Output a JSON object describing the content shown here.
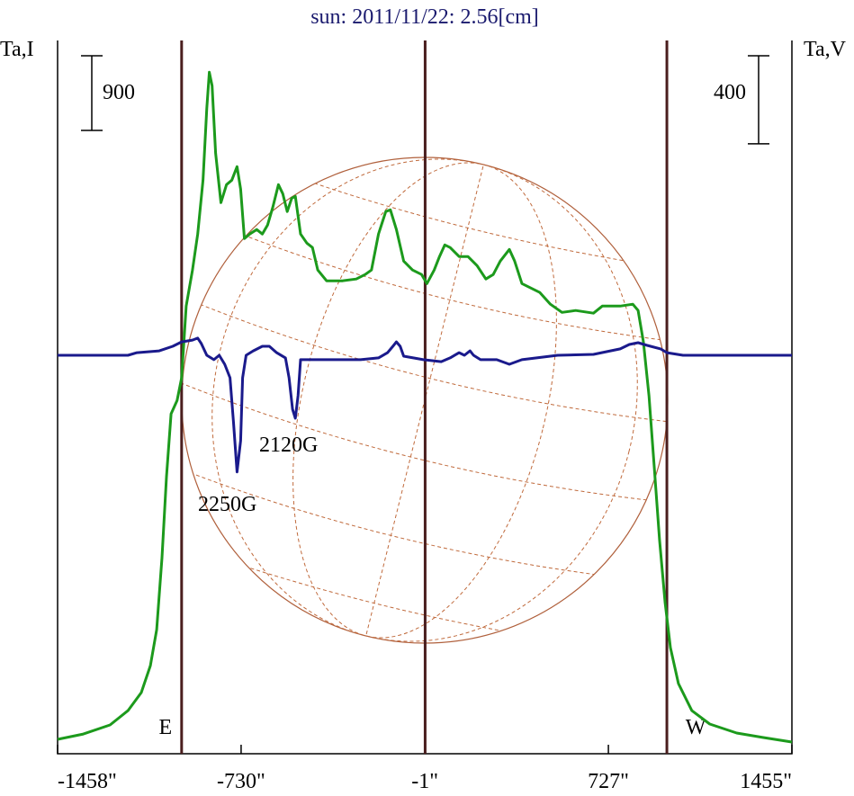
{
  "chart_data": {
    "type": "line",
    "title": "sun: 2011/11/22: 2.56[cm]",
    "ylabel": "Ta,I",
    "y2label": "Ta,V",
    "xlim": [
      -1458,
      1455
    ],
    "xticks": [
      {
        "value": -1458,
        "label": "-1458\""
      },
      {
        "value": -730,
        "label": "-730\""
      },
      {
        "value": -1,
        "label": "-1\""
      },
      {
        "value": 727,
        "label": "727\""
      },
      {
        "value": 1455,
        "label": "1455\""
      }
    ],
    "ylim": [
      0,
      8600
    ],
    "y2lim": [
      -1810,
      1430
    ],
    "scale_bars": {
      "y": 900,
      "y2": 400
    },
    "vlines": [
      {
        "x": -966,
        "label": "E"
      },
      {
        "x": 0
      },
      {
        "x": 959,
        "label": "W"
      }
    ],
    "annotations": [
      "2250G",
      "2120G"
    ],
    "series": [
      {
        "name": "I",
        "color": "#1c9a1c",
        "x": [
          -1458,
          -1356,
          -1250,
          -1179,
          -1126,
          -1090,
          -1065,
          -1044,
          -1026,
          -1008,
          -984,
          -966,
          -948,
          -923,
          -902,
          -881,
          -866,
          -856,
          -845,
          -831,
          -810,
          -788,
          -767,
          -746,
          -732,
          -717,
          -696,
          -668,
          -646,
          -625,
          -604,
          -582,
          -565,
          -547,
          -529,
          -515,
          -494,
          -469,
          -447,
          -426,
          -391,
          -327,
          -273,
          -238,
          -213,
          -185,
          -156,
          -138,
          -114,
          -85,
          -50,
          -14,
          7,
          36,
          57,
          78,
          99,
          135,
          170,
          206,
          241,
          270,
          298,
          334,
          355,
          384,
          455,
          497,
          543,
          597,
          668,
          703,
          774,
          824,
          845,
          866,
          888,
          909,
          930,
          952,
          973,
          1005,
          1058,
          1129,
          1236,
          1342,
          1455
        ],
        "values": [
          173,
          238,
          347,
          520,
          737,
          1062,
          1496,
          2363,
          3339,
          4098,
          4260,
          4531,
          5398,
          5832,
          6266,
          6916,
          7783,
          8217,
          8054,
          7241,
          6645,
          6862,
          6916,
          7079,
          6808,
          6211,
          6266,
          6320,
          6266,
          6374,
          6591,
          6862,
          6753,
          6537,
          6699,
          6721,
          6266,
          6157,
          6103,
          5832,
          5702,
          5702,
          5724,
          5778,
          5832,
          6266,
          6537,
          6558,
          6320,
          5940,
          5832,
          5778,
          5669,
          5832,
          5995,
          6135,
          6103,
          5995,
          5995,
          5886,
          5724,
          5778,
          5940,
          6081,
          5940,
          5669,
          5561,
          5420,
          5322,
          5344,
          5312,
          5398,
          5398,
          5420,
          5344,
          4965,
          4314,
          3447,
          2580,
          1821,
          1279,
          846,
          520,
          358,
          249,
          195,
          141
        ]
      },
      {
        "name": "V",
        "color": "#1a1a8c",
        "axis": "y2",
        "x": [
          -1458,
          -1179,
          -1143,
          -1055,
          -1001,
          -966,
          -923,
          -902,
          -888,
          -866,
          -838,
          -817,
          -795,
          -774,
          -760,
          -746,
          -732,
          -724,
          -710,
          -682,
          -646,
          -618,
          -589,
          -554,
          -540,
          -526,
          -515,
          -504,
          -494,
          -476,
          -398,
          -256,
          -185,
          -149,
          -128,
          -114,
          -99,
          -85,
          -7,
          64,
          99,
          135,
          156,
          178,
          192,
          220,
          284,
          334,
          384,
          526,
          668,
          774,
          810,
          845,
          881,
          934,
          959,
          1023,
          1455
        ],
        "values": [
          0,
          0,
          12,
          20,
          41,
          61,
          69,
          78,
          53,
          0,
          -20,
          0,
          -41,
          -102,
          -306,
          -530,
          -388,
          -102,
          0,
          20,
          41,
          41,
          12,
          -12,
          -102,
          -245,
          -286,
          -184,
          -20,
          -20,
          -20,
          -20,
          -12,
          12,
          41,
          61,
          41,
          -4,
          -20,
          -29,
          -12,
          12,
          0,
          20,
          0,
          -20,
          -20,
          -41,
          -20,
          0,
          4,
          29,
          49,
          57,
          45,
          29,
          12,
          0,
          0
        ]
      }
    ]
  }
}
